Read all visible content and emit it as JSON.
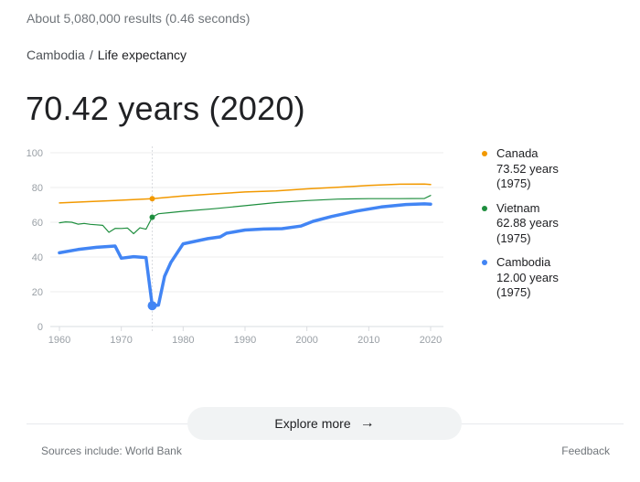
{
  "results_stats": "About 5,080,000 results (0.46 seconds)",
  "breadcrumb": {
    "parent": "Cambodia",
    "separator": "/",
    "current": "Life expectancy"
  },
  "headline": "70.42 years (2020)",
  "legend": [
    {
      "name": "Canada",
      "value": "73.52 years",
      "year": "(1975)",
      "color": "#f29900"
    },
    {
      "name": "Vietnam",
      "value": "62.88 years",
      "year": "(1975)",
      "color": "#1e8e3e"
    },
    {
      "name": "Cambodia",
      "value": "12.00 years",
      "year": "(1975)",
      "color": "#4285f4"
    }
  ],
  "explore_button": {
    "label": "Explore more",
    "icon": "arrow-right-icon"
  },
  "footer": {
    "sources": "Sources include: World Bank",
    "feedback": "Feedback"
  },
  "chart_data": {
    "type": "line",
    "title": "Life expectancy",
    "xlabel": "",
    "ylabel": "",
    "x_ticks": [
      1960,
      1970,
      1980,
      1990,
      2000,
      2010,
      2020
    ],
    "y_ticks": [
      0,
      20,
      40,
      60,
      80,
      100
    ],
    "xlim": [
      1960,
      2020
    ],
    "ylim": [
      0,
      100
    ],
    "grid": true,
    "legend_position": "right",
    "highlight_year": 1975,
    "series": [
      {
        "name": "Canada",
        "color": "#f29900",
        "width": 1.5,
        "x": [
          1960,
          1965,
          1970,
          1975,
          1980,
          1985,
          1990,
          1995,
          2000,
          2005,
          2010,
          2015,
          2019,
          2020
        ],
        "values": [
          71.1,
          71.9,
          72.7,
          73.52,
          75.1,
          76.3,
          77.4,
          78.0,
          79.2,
          80.1,
          81.2,
          81.9,
          82.0,
          81.7
        ]
      },
      {
        "name": "Vietnam",
        "color": "#1e8e3e",
        "width": 1.2,
        "x": [
          1960,
          1961,
          1962,
          1963,
          1964,
          1965,
          1966,
          1967,
          1968,
          1969,
          1970,
          1971,
          1972,
          1973,
          1974,
          1975,
          1976,
          1978,
          1980,
          1985,
          1990,
          1995,
          2000,
          2005,
          2010,
          2015,
          2019,
          2020
        ],
        "values": [
          59.7,
          60.2,
          60.0,
          58.9,
          59.3,
          58.8,
          58.5,
          58.2,
          54.2,
          56.5,
          56.4,
          56.7,
          53.4,
          56.8,
          56.0,
          62.88,
          64.9,
          65.6,
          66.3,
          67.8,
          69.5,
          71.3,
          72.5,
          73.3,
          73.6,
          73.6,
          73.7,
          75.4
        ]
      },
      {
        "name": "Cambodia",
        "color": "#4285f4",
        "width": 3.5,
        "x": [
          1960,
          1963,
          1966,
          1969,
          1970,
          1972,
          1974,
          1975,
          1976,
          1977,
          1978,
          1980,
          1984,
          1986,
          1987,
          1990,
          1993,
          1996,
          1999,
          2001,
          2004,
          2008,
          2012,
          2016,
          2019,
          2020
        ],
        "values": [
          42.4,
          44.3,
          45.6,
          46.3,
          39.3,
          40.2,
          39.7,
          12.0,
          12.3,
          28.9,
          36.8,
          47.6,
          50.6,
          51.6,
          53.7,
          55.5,
          56.1,
          56.3,
          57.8,
          60.5,
          63.3,
          66.4,
          68.8,
          70.2,
          70.6,
          70.42
        ]
      }
    ]
  }
}
